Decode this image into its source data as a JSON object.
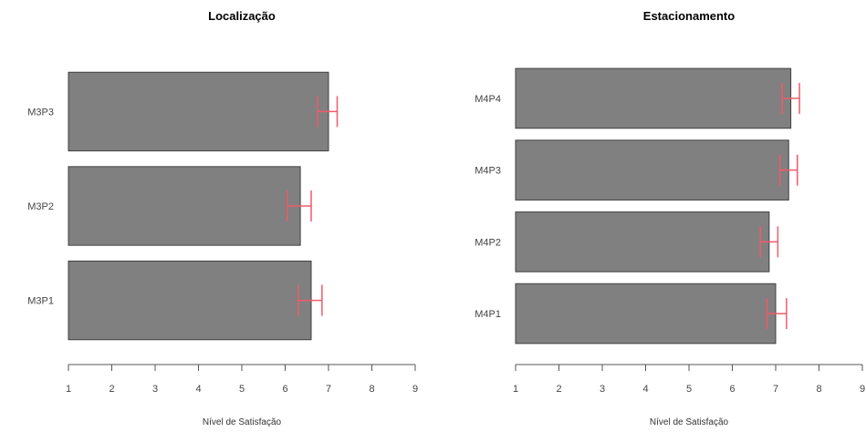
{
  "chart_data": [
    {
      "type": "bar",
      "orientation": "horizontal",
      "title": "Localização",
      "xlabel": "Nível de Satisfação",
      "ylabel": "",
      "xlim": [
        1,
        9
      ],
      "xticks": [
        1,
        2,
        3,
        4,
        5,
        6,
        7,
        8,
        9
      ],
      "categories": [
        "M3P1",
        "M3P2",
        "M3P3"
      ],
      "values": [
        6.6,
        6.35,
        7.0
      ],
      "error_low": [
        6.3,
        6.05,
        6.75
      ],
      "error_high": [
        6.85,
        6.6,
        7.2
      ],
      "bar_color": "#808080",
      "error_color": "#f05a6a"
    },
    {
      "type": "bar",
      "orientation": "horizontal",
      "title": "Estacionamento",
      "xlabel": "Nível de Satisfação",
      "ylabel": "",
      "xlim": [
        1,
        9
      ],
      "xticks": [
        1,
        2,
        3,
        4,
        5,
        6,
        7,
        8,
        9
      ],
      "categories": [
        "M4P1",
        "M4P2",
        "M4P3",
        "M4P4"
      ],
      "values": [
        7.0,
        6.85,
        7.3,
        7.35
      ],
      "error_low": [
        6.8,
        6.65,
        7.1,
        7.15
      ],
      "error_high": [
        7.25,
        7.05,
        7.5,
        7.55
      ],
      "bar_color": "#808080",
      "error_color": "#f05a6a"
    }
  ]
}
